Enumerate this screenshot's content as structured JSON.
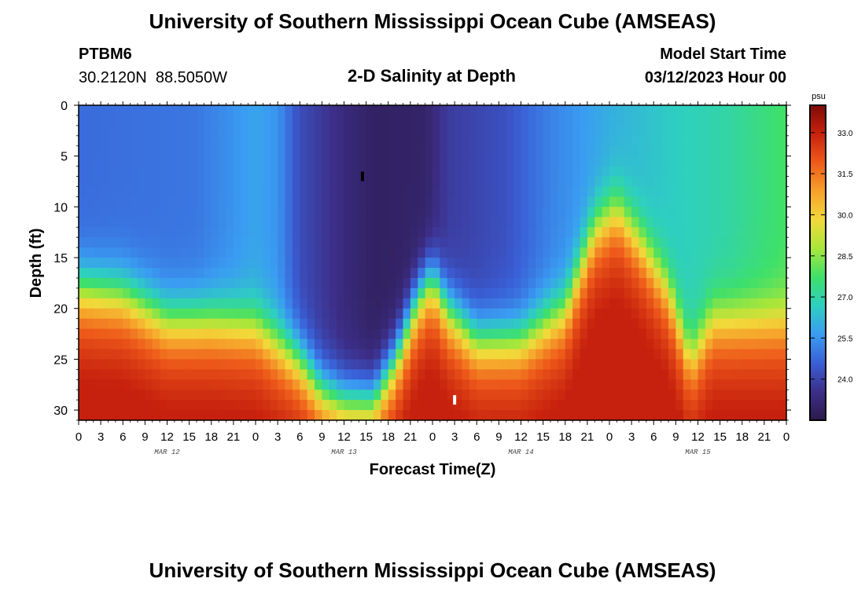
{
  "header": {
    "title": "University of Southern Mississippi Ocean Cube (AMSEAS)",
    "station_id": "PTBM6",
    "coords": "30.2120N  88.5050W",
    "plot_title": "2-D Salinity at Depth",
    "model_start_label": "Model Start Time",
    "model_start_value": "03/12/2023 Hour 00"
  },
  "footer": {
    "title": "University of Southern Mississippi Ocean Cube (AMSEAS)"
  },
  "colors": {
    "ramp": [
      "#2b1a4a",
      "#3d2f8a",
      "#3a5fd6",
      "#3a9cf2",
      "#2ecfc0",
      "#3ee06a",
      "#a8e63a",
      "#f2d93a",
      "#f6a12a",
      "#ee5a1a",
      "#c8220e",
      "#7e0a06"
    ]
  },
  "chart_data": {
    "type": "heatmap",
    "title": "2-D Salinity at Depth",
    "xlabel": "Forecast Time(Z)",
    "ylabel": "Depth (ft)",
    "x_hours_range": [
      0,
      96
    ],
    "x_tick_labels": [
      "0",
      "3",
      "6",
      "9",
      "12",
      "15",
      "18",
      "21",
      "0",
      "3",
      "6",
      "9",
      "12",
      "15",
      "18",
      "21",
      "0",
      "3",
      "6",
      "9",
      "12",
      "15",
      "18",
      "21",
      "0",
      "3",
      "6",
      "9",
      "12",
      "15",
      "18",
      "21",
      "0"
    ],
    "date_labels": [
      {
        "label": "MAR 12",
        "hour": 12
      },
      {
        "label": "MAR 13",
        "hour": 36
      },
      {
        "label": "MAR 14",
        "hour": 60
      },
      {
        "label": "MAR 15",
        "hour": 84
      }
    ],
    "ylim": [
      0,
      31
    ],
    "y_ticks": [
      0,
      5,
      10,
      15,
      20,
      25,
      30
    ],
    "y_tick_labels": [
      "0",
      "5",
      "10",
      "15",
      "20",
      "25",
      "30"
    ],
    "colorbar": {
      "unit": "psu",
      "range": [
        22.5,
        34.0
      ],
      "tick_values": [
        24.0,
        25.5,
        27.0,
        28.5,
        30.0,
        31.5,
        33.0
      ],
      "tick_labels": [
        "24.0",
        "25.5",
        "27.0",
        "28.5",
        "30.0",
        "31.5",
        "33.0"
      ]
    },
    "markers": [
      {
        "hour": 38.5,
        "depth": 7.0,
        "color": "#000000"
      },
      {
        "hour": 51,
        "depth": 29.0,
        "color": "#ffffff"
      }
    ],
    "halocline_depth_ft": [
      {
        "hour": 0,
        "depth": 18
      },
      {
        "hour": 6,
        "depth": 18.5
      },
      {
        "hour": 12,
        "depth": 21
      },
      {
        "hour": 18,
        "depth": 21
      },
      {
        "hour": 24,
        "depth": 21.5
      },
      {
        "hour": 30,
        "depth": 25
      },
      {
        "hour": 33,
        "depth": 28
      },
      {
        "hour": 36,
        "depth": 29
      },
      {
        "hour": 40,
        "depth": 29
      },
      {
        "hour": 43,
        "depth": 25
      },
      {
        "hour": 46,
        "depth": 19
      },
      {
        "hour": 48,
        "depth": 17
      },
      {
        "hour": 50,
        "depth": 20
      },
      {
        "hour": 54,
        "depth": 23
      },
      {
        "hour": 60,
        "depth": 23
      },
      {
        "hour": 66,
        "depth": 20
      },
      {
        "hour": 70,
        "depth": 12
      },
      {
        "hour": 73,
        "depth": 10
      },
      {
        "hour": 76,
        "depth": 13
      },
      {
        "hour": 80,
        "depth": 18
      },
      {
        "hour": 83,
        "depth": 25
      },
      {
        "hour": 86,
        "depth": 21
      },
      {
        "hour": 91,
        "depth": 21
      },
      {
        "hour": 96,
        "depth": 21
      }
    ],
    "surface_salinity_psu": [
      {
        "hour": 0,
        "value": 24.8
      },
      {
        "hour": 16,
        "value": 25.0
      },
      {
        "hour": 24,
        "value": 25.8
      },
      {
        "hour": 27,
        "value": 25.5
      },
      {
        "hour": 30,
        "value": 24.2
      },
      {
        "hour": 36,
        "value": 23.3
      },
      {
        "hour": 40,
        "value": 22.9
      },
      {
        "hour": 47,
        "value": 23.0
      },
      {
        "hour": 50,
        "value": 23.8
      },
      {
        "hour": 58,
        "value": 24.3
      },
      {
        "hour": 64,
        "value": 25.2
      },
      {
        "hour": 72,
        "value": 26.0
      },
      {
        "hour": 80,
        "value": 26.6
      },
      {
        "hour": 88,
        "value": 27.0
      },
      {
        "hour": 96,
        "value": 27.8
      }
    ]
  }
}
